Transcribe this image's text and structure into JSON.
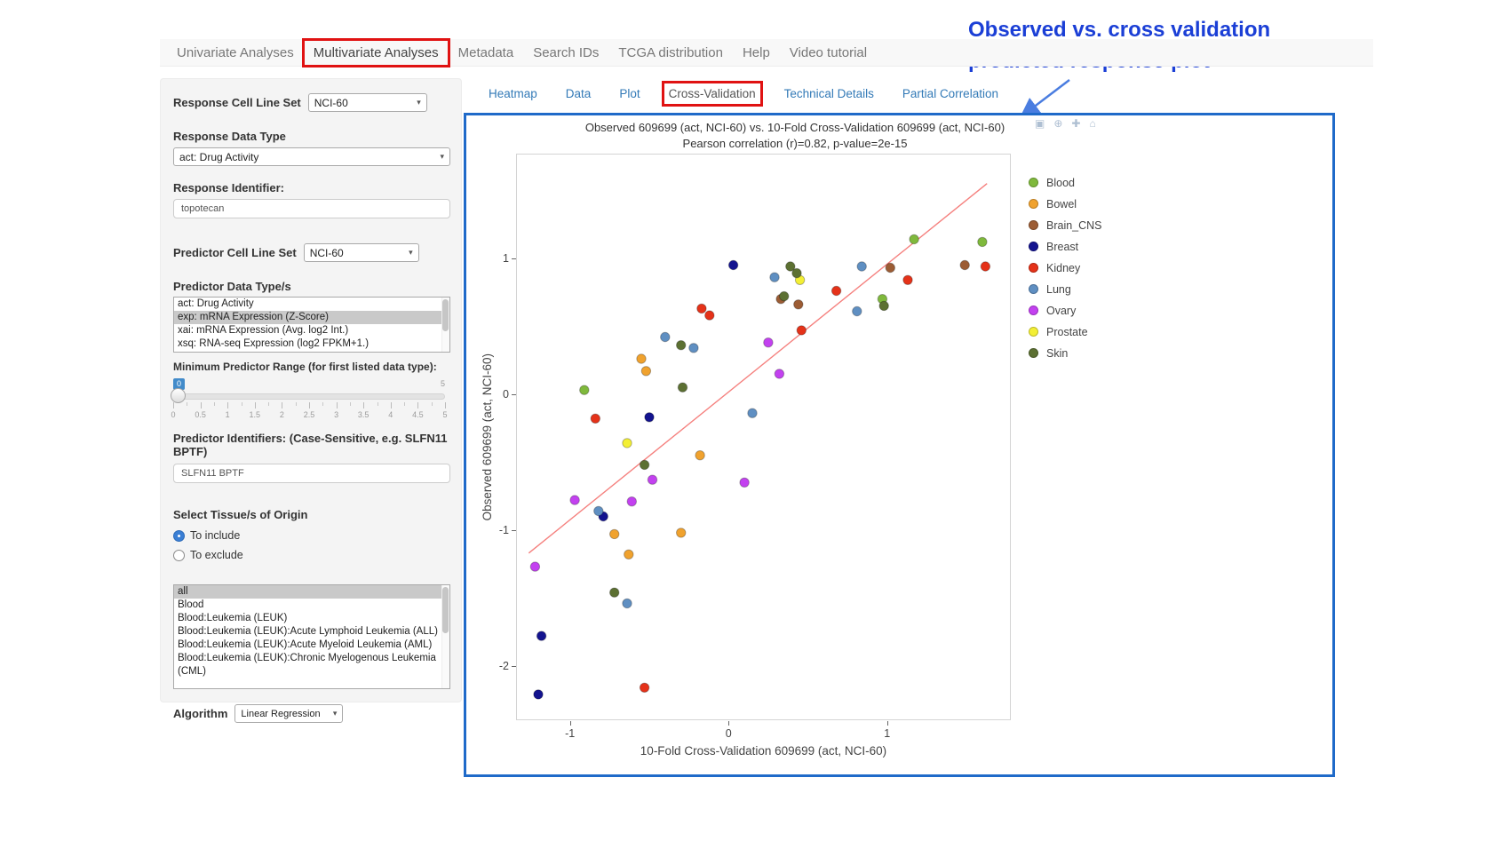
{
  "annotation": {
    "text_line1": "Observed vs. cross validation",
    "text_line2": "predicted response plot",
    "color": "#1b3fd6"
  },
  "nav": {
    "items": [
      {
        "label": "Univariate Analyses",
        "active": false,
        "boxed": false
      },
      {
        "label": "Multivariate Analyses",
        "active": true,
        "boxed": true
      },
      {
        "label": "Metadata",
        "active": false,
        "boxed": false
      },
      {
        "label": "Search IDs",
        "active": false,
        "boxed": false
      },
      {
        "label": "TCGA distribution",
        "active": false,
        "boxed": false
      },
      {
        "label": "Help",
        "active": false,
        "boxed": false
      },
      {
        "label": "Video tutorial",
        "active": false,
        "boxed": false
      }
    ]
  },
  "sidebar": {
    "response_cell_line_set": {
      "label": "Response Cell Line Set",
      "value": "NCI-60"
    },
    "response_data_type": {
      "label": "Response Data Type",
      "value": "act: Drug Activity"
    },
    "response_identifier": {
      "label": "Response Identifier:",
      "value": "topotecan"
    },
    "predictor_cell_line_set": {
      "label": "Predictor Cell Line Set",
      "value": "NCI-60"
    },
    "predictor_data_types": {
      "label": "Predictor Data Type/s",
      "options": [
        "act: Drug Activity",
        "exp: mRNA Expression (Z-Score)",
        "xai: mRNA Expression (Avg. log2 Int.)",
        "xsq: RNA-seq Expression (log2 FPKM+1.)"
      ],
      "selected": "exp: mRNA Expression (Z-Score)"
    },
    "min_predictor_range": {
      "label": "Minimum Predictor Range (for first listed data type):",
      "value": "0",
      "max_label": "5",
      "ticks": [
        "0",
        "0.5",
        "1",
        "1.5",
        "2",
        "2.5",
        "3",
        "3.5",
        "4",
        "4.5",
        "5"
      ]
    },
    "predictor_identifiers": {
      "label": "Predictor Identifiers: (Case-Sensitive, e.g. SLFN11 BPTF)",
      "value": "SLFN11 BPTF"
    },
    "tissue_origin": {
      "label": "Select Tissue/s of Origin",
      "options": [
        {
          "label": "To include",
          "selected": true
        },
        {
          "label": "To exclude",
          "selected": false
        }
      ]
    },
    "tissue_list": {
      "options": [
        "all",
        "Blood",
        "Blood:Leukemia (LEUK)",
        "Blood:Leukemia (LEUK):Acute Lymphoid Leukemia (ALL)",
        "Blood:Leukemia (LEUK):Acute Myeloid Leukemia (AML)",
        "Blood:Leukemia (LEUK):Chronic Myelogenous Leukemia (CML)"
      ],
      "selected": "all"
    },
    "algorithm": {
      "label": "Algorithm",
      "value": "Linear Regression"
    }
  },
  "subtabs": {
    "items": [
      {
        "label": "Heatmap",
        "active": false,
        "boxed": false
      },
      {
        "label": "Data",
        "active": false,
        "boxed": false
      },
      {
        "label": "Plot",
        "active": false,
        "boxed": false
      },
      {
        "label": "Cross-Validation",
        "active": true,
        "boxed": true
      },
      {
        "label": "Technical Details",
        "active": false,
        "boxed": false
      },
      {
        "label": "Partial Correlation",
        "active": false,
        "boxed": false
      }
    ]
  },
  "modebar": {
    "icons": [
      {
        "name": "camera-icon",
        "glyph": "▣"
      },
      {
        "name": "zoom-icon",
        "glyph": "⊕"
      },
      {
        "name": "pan-icon",
        "glyph": "✚"
      },
      {
        "name": "home-icon",
        "glyph": "⌂"
      }
    ]
  },
  "highlight_color": "#e01212",
  "chart_data": {
    "type": "scatter",
    "title": "Observed 609699 (act, NCI-60) vs. 10-Fold Cross-Validation 609699 (act, NCI-60)",
    "subtitle": "Pearson correlation (r)=0.82, p-value=2e-15",
    "xlabel": "10-Fold Cross-Validation 609699 (act, NCI-60)",
    "ylabel": "Observed 609699 (act, NCI-60)",
    "xlim": [
      -1.34,
      1.78
    ],
    "ylim": [
      -2.4,
      1.77
    ],
    "xticks": [
      -1,
      0,
      1
    ],
    "yticks": [
      -2,
      -1,
      0,
      1
    ],
    "grid": false,
    "legend_position": "right",
    "regression_line": {
      "x1": -1.26,
      "y1": -1.17,
      "x2": 1.63,
      "y2": 1.55,
      "color": "#f5807e"
    },
    "series": [
      {
        "name": "Blood",
        "color": "#7fb93c",
        "points": [
          [
            -0.91,
            0.03
          ],
          [
            0.97,
            0.7
          ],
          [
            1.17,
            1.14
          ],
          [
            1.6,
            1.12
          ]
        ]
      },
      {
        "name": "Bowel",
        "color": "#f0a22e",
        "points": [
          [
            -0.55,
            0.26
          ],
          [
            -0.52,
            0.17
          ],
          [
            -0.18,
            -0.45
          ],
          [
            -0.72,
            -1.03
          ],
          [
            -0.3,
            -1.02
          ],
          [
            -0.63,
            -1.18
          ]
        ]
      },
      {
        "name": "Brain_CNS",
        "color": "#9c5c34",
        "points": [
          [
            0.33,
            0.7
          ],
          [
            0.44,
            0.66
          ],
          [
            1.02,
            0.93
          ],
          [
            1.49,
            0.95
          ]
        ]
      },
      {
        "name": "Breast",
        "color": "#13138f",
        "points": [
          [
            0.03,
            0.95
          ],
          [
            -0.5,
            -0.17
          ],
          [
            -0.79,
            -0.9
          ],
          [
            -1.18,
            -1.78
          ],
          [
            -1.2,
            -2.21
          ]
        ]
      },
      {
        "name": "Kidney",
        "color": "#e53219",
        "points": [
          [
            -0.84,
            -0.18
          ],
          [
            -0.17,
            0.63
          ],
          [
            -0.12,
            0.58
          ],
          [
            0.46,
            0.47
          ],
          [
            0.68,
            0.76
          ],
          [
            1.13,
            0.84
          ],
          [
            1.62,
            0.94
          ],
          [
            -0.53,
            -2.16
          ]
        ]
      },
      {
        "name": "Lung",
        "color": "#5f8fc2",
        "points": [
          [
            0.29,
            0.86
          ],
          [
            0.84,
            0.94
          ],
          [
            0.81,
            0.61
          ],
          [
            -0.4,
            0.42
          ],
          [
            -0.22,
            0.34
          ],
          [
            0.15,
            -0.14
          ],
          [
            -0.82,
            -0.86
          ],
          [
            -0.64,
            -1.54
          ]
        ]
      },
      {
        "name": "Ovary",
        "color": "#c341f0",
        "points": [
          [
            -1.22,
            -1.27
          ],
          [
            -0.97,
            -0.78
          ],
          [
            -0.61,
            -0.79
          ],
          [
            -0.48,
            -0.63
          ],
          [
            0.1,
            -0.65
          ],
          [
            0.25,
            0.38
          ],
          [
            0.32,
            0.15
          ]
        ]
      },
      {
        "name": "Prostate",
        "color": "#f3ef35",
        "points": [
          [
            -0.64,
            -0.36
          ],
          [
            0.45,
            0.84
          ]
        ]
      },
      {
        "name": "Skin",
        "color": "#5c7032",
        "points": [
          [
            0.39,
            0.94
          ],
          [
            0.43,
            0.89
          ],
          [
            0.35,
            0.72
          ],
          [
            -0.3,
            0.36
          ],
          [
            -0.29,
            0.05
          ],
          [
            -0.53,
            -0.52
          ],
          [
            -0.72,
            -1.46
          ],
          [
            0.98,
            0.65
          ]
        ]
      }
    ]
  }
}
